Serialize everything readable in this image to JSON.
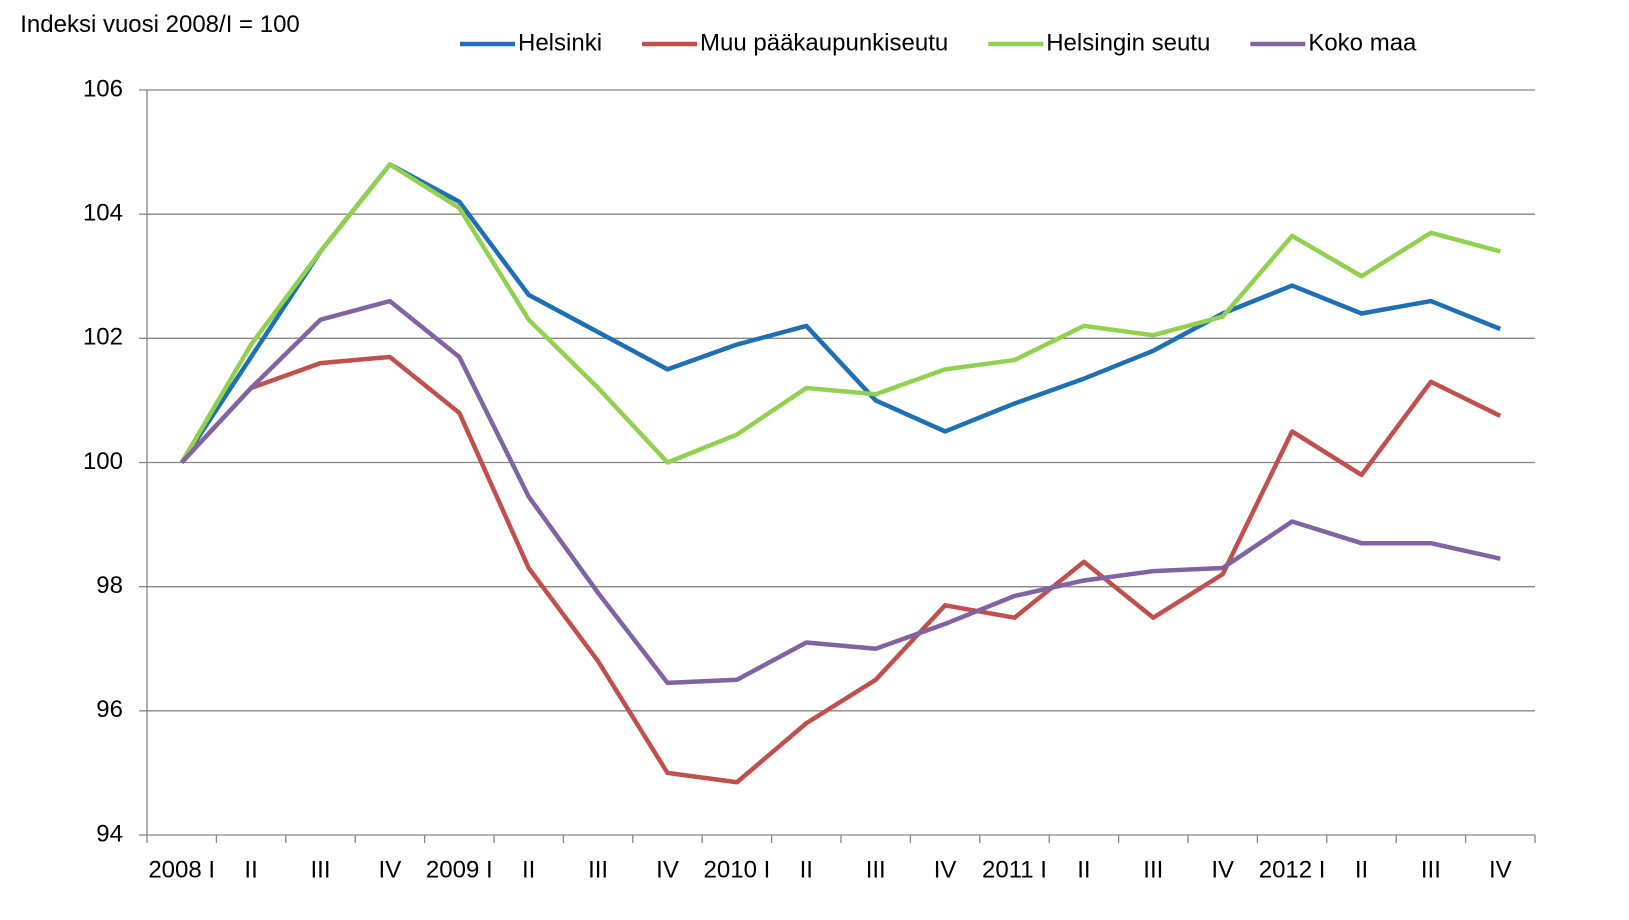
{
  "chart_data": {
    "type": "line",
    "y_label": "Indeksi vuosi 2008/I = 100",
    "categories": [
      "2008 I",
      "II",
      "III",
      "IV",
      "2009 I",
      "II",
      "III",
      "IV",
      "2010 I",
      "II",
      "III",
      "IV",
      "2011 I",
      "II",
      "III",
      "IV",
      "2012 I",
      "II",
      "III",
      "IV"
    ],
    "series": [
      {
        "name": "Helsinki",
        "color": "#1f6fb4",
        "values": [
          100,
          101.7,
          103.4,
          104.8,
          104.2,
          102.7,
          102.1,
          101.5,
          101.9,
          102.2,
          101.0,
          100.5,
          100.95,
          101.35,
          101.8,
          102.4,
          102.85,
          102.4,
          102.6,
          102.15
        ]
      },
      {
        "name": "Muu pääkaupunkiseutu",
        "color": "#c0504d",
        "values": [
          100,
          101.2,
          101.6,
          101.7,
          100.8,
          98.3,
          96.8,
          95.0,
          94.85,
          95.8,
          96.5,
          97.7,
          97.5,
          98.4,
          97.5,
          98.2,
          100.5,
          99.8,
          101.3,
          100.75
        ]
      },
      {
        "name": "Helsingin seutu",
        "color": "#92d050",
        "values": [
          100,
          101.9,
          103.4,
          104.8,
          104.1,
          102.3,
          101.2,
          100.0,
          100.45,
          101.2,
          101.1,
          101.5,
          101.65,
          102.2,
          102.05,
          102.35,
          103.65,
          103.0,
          103.7,
          103.4
        ]
      },
      {
        "name": "Koko maa",
        "color": "#8064a2",
        "values": [
          100,
          101.2,
          102.3,
          102.6,
          101.7,
          99.45,
          97.9,
          96.45,
          96.5,
          97.1,
          97.0,
          97.4,
          97.85,
          98.1,
          98.25,
          98.3,
          99.05,
          98.7,
          98.7,
          98.45
        ]
      }
    ],
    "ylim": [
      94,
      106
    ],
    "yticks": [
      94,
      96,
      98,
      100,
      102,
      104,
      106
    ],
    "grid": true,
    "legend": "top"
  }
}
